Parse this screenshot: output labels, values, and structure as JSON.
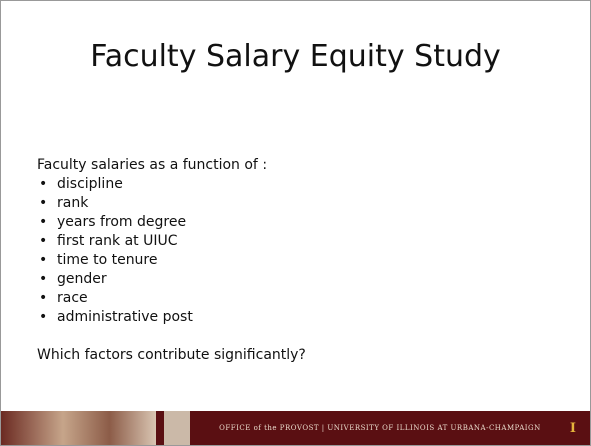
{
  "slide": {
    "title": "Faculty Salary Equity Study",
    "intro": "Faculty salaries as a function of :",
    "bullets": [
      "discipline",
      "rank",
      "years from degree",
      "first rank at UIUC",
      "time to tenure",
      "gender",
      "race",
      "administrative post"
    ],
    "question": "Which factors contribute significantly?",
    "footer": {
      "office": "OFFICE of the PROVOST",
      "separator": "|",
      "university": "UNIVERSITY OF ILLINOIS AT URBANA-CHAMPAIGN",
      "logo": "I"
    }
  }
}
